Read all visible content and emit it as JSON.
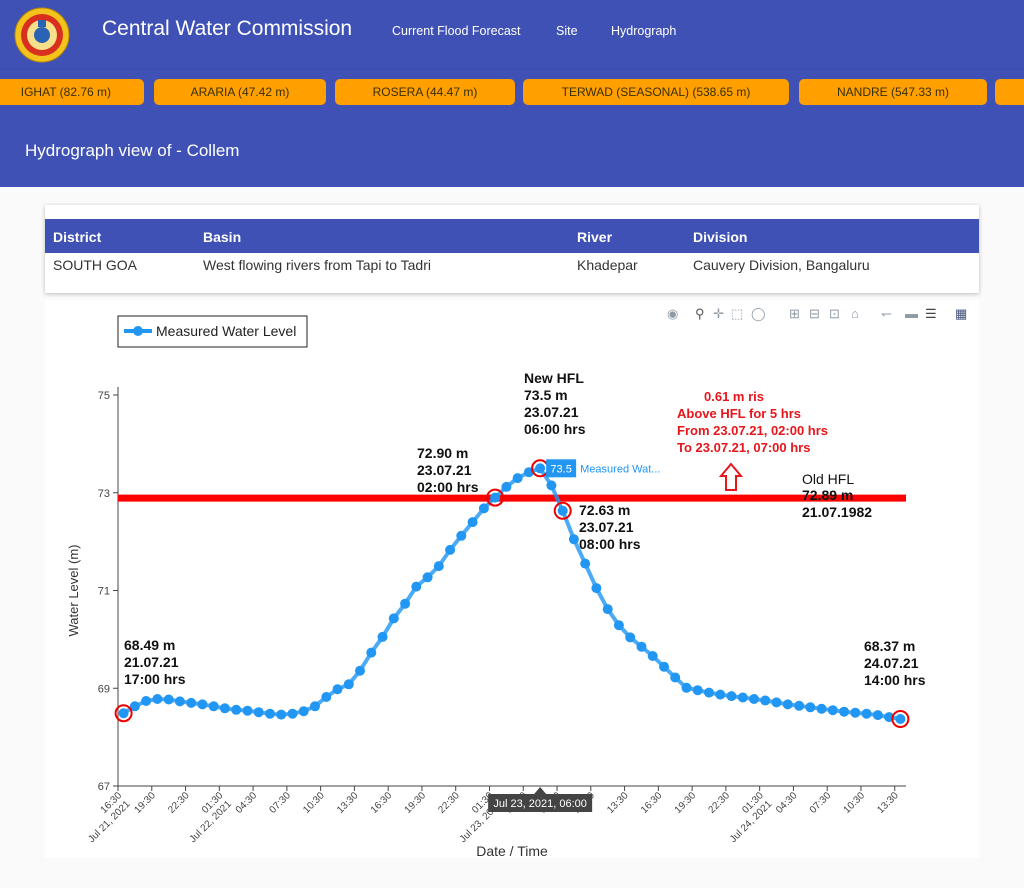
{
  "header": {
    "title": "Central Water Commission",
    "nav": [
      "Current Flood Forecast",
      "Site",
      "Hydrograph"
    ]
  },
  "ticker": [
    "IGHAT (82.76 m)",
    "ARARIA (47.42 m)",
    "ROSERA (44.47 m)",
    "TERWAD (SEASONAL) (538.65 m)",
    "NANDRE (547.33 m)",
    ""
  ],
  "page": {
    "title": "Hydrograph view of - Collem"
  },
  "site_table": {
    "headers": [
      "District",
      "Basin",
      "River",
      "Division"
    ],
    "row": [
      "SOUTH GOA",
      "West flowing rivers from Tapi to Tadri",
      "Khadepar",
      "Cauvery Division, Bangaluru"
    ]
  },
  "modebar_icons": [
    "camera-icon",
    "zoom-icon",
    "pan-icon",
    "box-select-icon",
    "lasso-icon",
    "zoom-in-icon",
    "zoom-out-icon",
    "autoscale-icon",
    "reset-axes-icon",
    "spike-lines-icon",
    "hover-closest-icon",
    "hover-compare-icon",
    "plotly-logo-icon"
  ],
  "colors": {
    "primary": "#3f51b5",
    "ticker": "#ffa000",
    "series": "#2196f3",
    "hfl_line": "#ff0000",
    "annotation_red": "#e8151b"
  },
  "chart_data": {
    "type": "line",
    "legend": {
      "position": "top-left",
      "entries": [
        "Measured Water Level"
      ]
    },
    "xlabel": "Date / Time",
    "ylabel": "Water Level (m)",
    "ylim": [
      67,
      75
    ],
    "yticks": [
      67,
      69,
      71,
      73,
      75
    ],
    "x_start": "2021-07-21 16:30",
    "x_end": "2021-07-24 14:30",
    "x_ticks": [
      [
        "16:30",
        "Jul 21, 2021"
      ],
      [
        "19:30",
        ""
      ],
      [
        "22:30",
        ""
      ],
      [
        "01:30",
        "Jul 22, 2021"
      ],
      [
        "04:30",
        ""
      ],
      [
        "07:30",
        ""
      ],
      [
        "10:30",
        ""
      ],
      [
        "13:30",
        ""
      ],
      [
        "16:30",
        ""
      ],
      [
        "19:30",
        ""
      ],
      [
        "22:30",
        ""
      ],
      [
        "01:30",
        "Jul 23, 2021"
      ],
      [
        "04:30",
        ""
      ],
      [
        "07:30",
        ""
      ],
      [
        "10:30",
        ""
      ],
      [
        "13:30",
        ""
      ],
      [
        "16:30",
        ""
      ],
      [
        "19:30",
        ""
      ],
      [
        "22:30",
        ""
      ],
      [
        "01:30",
        "Jul 24, 2021"
      ],
      [
        "04:30",
        ""
      ],
      [
        "07:30",
        ""
      ],
      [
        "10:30",
        ""
      ],
      [
        "13:30",
        ""
      ]
    ],
    "series": [
      {
        "name": "Measured Water Level",
        "x": [
          "2021-07-21 17:00",
          "2021-07-21 18:00",
          "2021-07-21 19:00",
          "2021-07-21 20:00",
          "2021-07-21 21:00",
          "2021-07-21 22:00",
          "2021-07-21 23:00",
          "2021-07-22 00:00",
          "2021-07-22 01:00",
          "2021-07-22 02:00",
          "2021-07-22 03:00",
          "2021-07-22 04:00",
          "2021-07-22 05:00",
          "2021-07-22 06:00",
          "2021-07-22 07:00",
          "2021-07-22 08:00",
          "2021-07-22 09:00",
          "2021-07-22 10:00",
          "2021-07-22 11:00",
          "2021-07-22 12:00",
          "2021-07-22 13:00",
          "2021-07-22 14:00",
          "2021-07-22 15:00",
          "2021-07-22 16:00",
          "2021-07-22 17:00",
          "2021-07-22 18:00",
          "2021-07-22 19:00",
          "2021-07-22 20:00",
          "2021-07-22 21:00",
          "2021-07-22 22:00",
          "2021-07-22 23:00",
          "2021-07-23 00:00",
          "2021-07-23 01:00",
          "2021-07-23 02:00",
          "2021-07-23 03:00",
          "2021-07-23 04:00",
          "2021-07-23 05:00",
          "2021-07-23 06:00",
          "2021-07-23 07:00",
          "2021-07-23 08:00",
          "2021-07-23 09:00",
          "2021-07-23 10:00",
          "2021-07-23 11:00",
          "2021-07-23 12:00",
          "2021-07-23 13:00",
          "2021-07-23 14:00",
          "2021-07-23 15:00",
          "2021-07-23 16:00",
          "2021-07-23 17:00",
          "2021-07-23 18:00",
          "2021-07-23 19:00",
          "2021-07-23 20:00",
          "2021-07-23 21:00",
          "2021-07-23 22:00",
          "2021-07-23 23:00",
          "2021-07-24 00:00",
          "2021-07-24 01:00",
          "2021-07-24 02:00",
          "2021-07-24 03:00",
          "2021-07-24 04:00",
          "2021-07-24 05:00",
          "2021-07-24 06:00",
          "2021-07-24 07:00",
          "2021-07-24 08:00",
          "2021-07-24 09:00",
          "2021-07-24 10:00",
          "2021-07-24 11:00",
          "2021-07-24 12:00",
          "2021-07-24 13:00",
          "2021-07-24 14:00"
        ],
        "y": [
          68.49,
          68.63,
          68.74,
          68.78,
          68.77,
          68.73,
          68.7,
          68.67,
          68.63,
          68.59,
          68.56,
          68.54,
          68.51,
          68.48,
          68.46,
          68.48,
          68.53,
          68.63,
          68.82,
          68.98,
          69.08,
          69.36,
          69.73,
          70.05,
          70.43,
          70.73,
          71.08,
          71.27,
          71.5,
          71.83,
          72.12,
          72.4,
          72.68,
          72.9,
          73.12,
          73.3,
          73.42,
          73.5,
          73.15,
          72.63,
          72.05,
          71.55,
          71.05,
          70.62,
          70.29,
          70.04,
          69.85,
          69.66,
          69.44,
          69.22,
          69.01,
          68.96,
          68.91,
          68.87,
          68.84,
          68.81,
          68.78,
          68.75,
          68.71,
          68.67,
          68.64,
          68.61,
          68.58,
          68.55,
          68.52,
          68.5,
          68.48,
          68.45,
          68.41,
          68.37
        ]
      }
    ],
    "reference_lines": [
      {
        "y": 72.89,
        "label": "Old HFL"
      }
    ],
    "hover": {
      "x_label": "Jul 23, 2021, 06:00",
      "value": "73.5",
      "series": "Measured Wat..."
    },
    "annotations": [
      {
        "anchor_x": "2021-07-21 17:00",
        "anchor_y": 68.49,
        "lines": [
          "68.49 m",
          "21.07.21",
          "17:00 hrs"
        ],
        "color": "#111111"
      },
      {
        "anchor_x": "2021-07-23 02:00",
        "anchor_y": 72.9,
        "lines": [
          "72.90 m",
          "23.07.21",
          "02:00 hrs"
        ],
        "color": "#111111"
      },
      {
        "anchor_x": "2021-07-23 06:00",
        "anchor_y": 73.5,
        "lines": [
          "New HFL",
          "73.5 m",
          "23.07.21",
          "06:00 hrs"
        ],
        "color": "#111111"
      },
      {
        "anchor_x": "2021-07-23 08:00",
        "anchor_y": 72.63,
        "lines": [
          "72.63 m",
          "23.07.21",
          "08:00 hrs"
        ],
        "color": "#111111"
      },
      {
        "anchor_x": "2021-07-24 14:00",
        "anchor_y": 68.37,
        "lines": [
          "68.37 m",
          "24.07.21",
          "14:00 hrs"
        ],
        "color": "#111111"
      },
      {
        "lines": [
          "0.61 m ris",
          "Above HFL for 5 hrs",
          "From 23.07.21, 02:00 hrs",
          "To      23.07.21, 07:00 hrs"
        ],
        "color": "#e8151b"
      },
      {
        "lines": [
          "72.89 m",
          "21.07.1982"
        ],
        "color": "#111111"
      }
    ],
    "grid": false
  }
}
